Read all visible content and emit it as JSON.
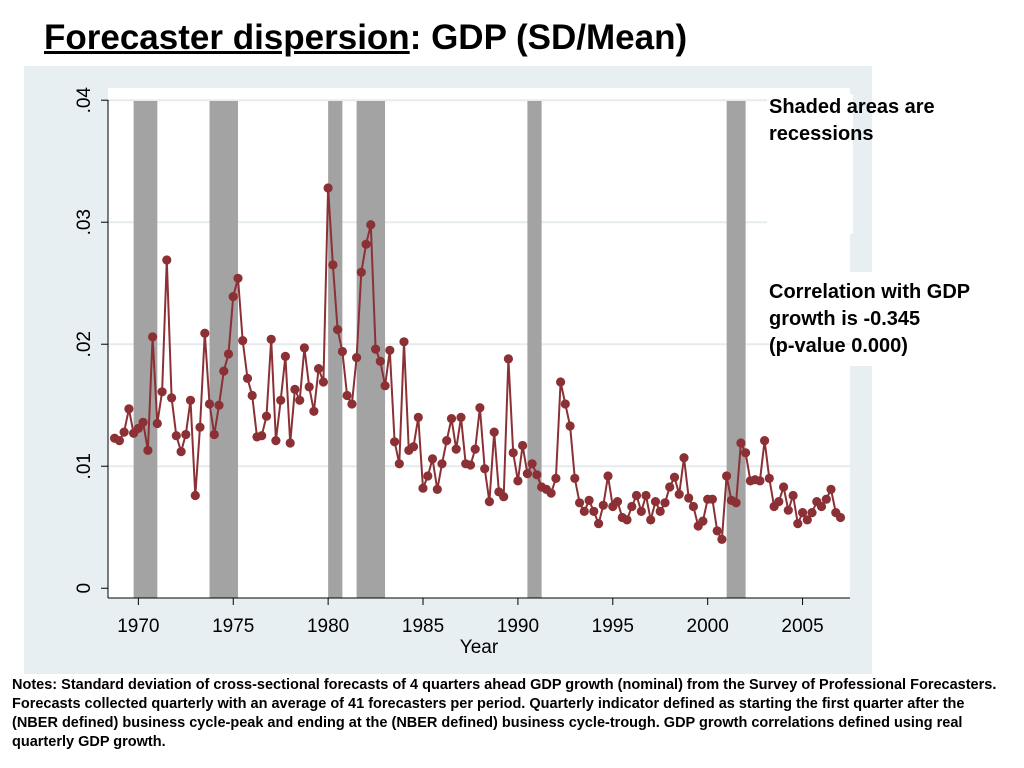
{
  "title": {
    "underlined": "Forecaster dispersion",
    "rest": ":  GDP (SD/Mean)"
  },
  "annotations": {
    "recessions": "Shaded areas are recessions",
    "correlation_line1": "Correlation with GDP",
    "correlation_line2": "growth is -0.345",
    "correlation_line3": "(p-value 0.000)"
  },
  "notes": "Notes: Standard deviation of cross-sectional forecasts of 4 quarters ahead GDP growth (nominal) from the Survey of Professional Forecasters. Forecasts collected quarterly with an average of 41 forecasters per period. Quarterly indicator defined as starting the first quarter after the (NBER defined) business cycle-peak and ending at the (NBER defined) business cycle-trough.  GDP growth correlations defined using real quarterly GDP growth.",
  "colors": {
    "line": "#8b3035",
    "marker": "#8b3035",
    "recession": "#a3a3a3",
    "panel": "#e8eff2",
    "plot": "#ffffff"
  },
  "chart_data": {
    "type": "line",
    "xlabel": "Year",
    "ylabel": "",
    "xlim": [
      1968.4,
      2007.5
    ],
    "ylim": [
      -0.0008,
      0.041
    ],
    "x_ticks": [
      1970,
      1975,
      1980,
      1985,
      1990,
      1995,
      2000,
      2005
    ],
    "x_tick_labels": [
      "1970",
      "1975",
      "1980",
      "1985",
      "1990",
      "1995",
      "2000",
      "2005"
    ],
    "y_ticks": [
      0,
      0.01,
      0.02,
      0.03,
      0.04
    ],
    "y_tick_labels": [
      "0",
      ".01",
      ".02",
      ".03",
      ".04"
    ],
    "grid": "horizontal",
    "recessions": [
      [
        1969.75,
        1971.0
      ],
      [
        1973.75,
        1975.25
      ],
      [
        1980.0,
        1980.75
      ],
      [
        1981.5,
        1983.0
      ],
      [
        1990.5,
        1991.25
      ],
      [
        2001.0,
        2002.0
      ]
    ],
    "series": [
      {
        "x_start": 1968.75,
        "x_step": 0.25,
        "values": [
          0.0123,
          0.0121,
          0.0128,
          0.0147,
          0.0127,
          0.0131,
          0.0136,
          0.0113,
          0.0206,
          0.0135,
          0.0161,
          0.0269,
          0.0156,
          0.0125,
          0.0112,
          0.0126,
          0.0154,
          0.0076,
          0.0132,
          0.0209,
          0.0151,
          0.0126,
          0.015,
          0.0178,
          0.0192,
          0.0239,
          0.0254,
          0.0203,
          0.0172,
          0.0158,
          0.0124,
          0.0125,
          0.0141,
          0.0204,
          0.0121,
          0.0154,
          0.019,
          0.0119,
          0.0163,
          0.0154,
          0.0197,
          0.0165,
          0.0145,
          0.018,
          0.0169,
          0.0328,
          0.0265,
          0.0212,
          0.0194,
          0.0158,
          0.0151,
          0.0189,
          0.0259,
          0.0282,
          0.0298,
          0.0196,
          0.0186,
          0.0166,
          0.0195,
          0.012,
          0.0102,
          0.0202,
          0.0113,
          0.0116,
          0.014,
          0.0082,
          0.0092,
          0.0106,
          0.0081,
          0.0102,
          0.0121,
          0.0139,
          0.0114,
          0.014,
          0.0102,
          0.0101,
          0.0114,
          0.0148,
          0.0098,
          0.0071,
          0.0128,
          0.0079,
          0.0075,
          0.0188,
          0.0111,
          0.0088,
          0.0117,
          0.0094,
          0.0102,
          0.0093,
          0.0083,
          0.0081,
          0.0078,
          0.009,
          0.0169,
          0.0151,
          0.0133,
          0.009,
          0.007,
          0.0063,
          0.0072,
          0.0063,
          0.0053,
          0.0068,
          0.0092,
          0.0067,
          0.0071,
          0.0058,
          0.0056,
          0.0067,
          0.0076,
          0.0063,
          0.0076,
          0.0056,
          0.0071,
          0.0063,
          0.007,
          0.0083,
          0.0091,
          0.0077,
          0.0107,
          0.0074,
          0.0067,
          0.0051,
          0.0055,
          0.0073,
          0.0073,
          0.0047,
          0.004,
          0.0092,
          0.0072,
          0.007,
          0.0119,
          0.0111,
          0.0088,
          0.0089,
          0.0088,
          0.0121,
          0.009,
          0.0067,
          0.0071,
          0.0083,
          0.0064,
          0.0076,
          0.0053,
          0.0062,
          0.0056,
          0.0062,
          0.0071,
          0.0067,
          0.0073,
          0.0081,
          0.0062,
          0.0058
        ]
      }
    ]
  }
}
